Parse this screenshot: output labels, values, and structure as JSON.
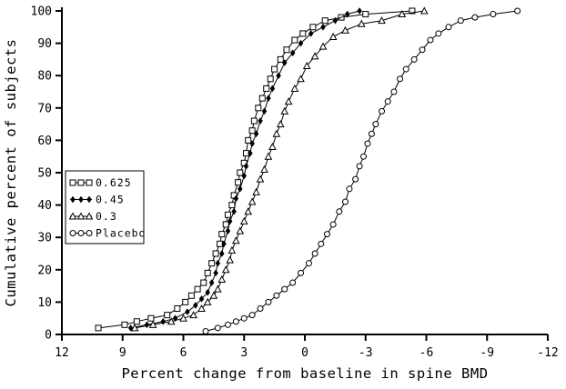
{
  "figure": {
    "background": "#ffffff",
    "ink": "#000000"
  },
  "chart_data": {
    "type": "line",
    "subtype": "cumulative-distribution",
    "title": "",
    "xlabel": "Percent change from baseline in spine BMD",
    "ylabel": "Cumulative percent of subjects",
    "grid": false,
    "x_axis": {
      "min": -12,
      "max": 12,
      "reversed": true,
      "ticks": [
        12,
        9,
        6,
        3,
        0,
        -3,
        -6,
        -9,
        -12
      ]
    },
    "y_axis": {
      "min": 0,
      "max": 100,
      "ticks": [
        0,
        10,
        20,
        30,
        40,
        50,
        60,
        70,
        80,
        90,
        100
      ]
    },
    "legend": {
      "position": "inside-left",
      "entries": [
        "0.625",
        "0.45",
        "0.3",
        "Placebo"
      ]
    },
    "series": [
      {
        "name": "0.625",
        "marker": "square",
        "points": [
          [
            10.2,
            2
          ],
          [
            8.9,
            3
          ],
          [
            8.3,
            4
          ],
          [
            7.6,
            5
          ],
          [
            6.8,
            6
          ],
          [
            6.3,
            8
          ],
          [
            5.9,
            10
          ],
          [
            5.6,
            12
          ],
          [
            5.3,
            14
          ],
          [
            5.0,
            16
          ],
          [
            4.8,
            19
          ],
          [
            4.6,
            22
          ],
          [
            4.4,
            25
          ],
          [
            4.2,
            28
          ],
          [
            4.1,
            31
          ],
          [
            3.9,
            34
          ],
          [
            3.8,
            37
          ],
          [
            3.6,
            40
          ],
          [
            3.5,
            43
          ],
          [
            3.3,
            47
          ],
          [
            3.2,
            50
          ],
          [
            3.0,
            53
          ],
          [
            2.9,
            56
          ],
          [
            2.8,
            60
          ],
          [
            2.6,
            63
          ],
          [
            2.5,
            66
          ],
          [
            2.3,
            70
          ],
          [
            2.1,
            73
          ],
          [
            1.9,
            76
          ],
          [
            1.7,
            79
          ],
          [
            1.5,
            82
          ],
          [
            1.2,
            85
          ],
          [
            0.9,
            88
          ],
          [
            0.5,
            91
          ],
          [
            0.1,
            93
          ],
          [
            -0.4,
            95
          ],
          [
            -1.0,
            97
          ],
          [
            -1.8,
            98
          ],
          [
            -3.0,
            99
          ],
          [
            -5.3,
            100
          ]
        ]
      },
      {
        "name": "0.45",
        "marker": "diamond",
        "points": [
          [
            8.6,
            2
          ],
          [
            7.8,
            3
          ],
          [
            7.0,
            4
          ],
          [
            6.4,
            5
          ],
          [
            5.8,
            7
          ],
          [
            5.4,
            9
          ],
          [
            5.1,
            11
          ],
          [
            4.8,
            13
          ],
          [
            4.6,
            16
          ],
          [
            4.4,
            19
          ],
          [
            4.3,
            22
          ],
          [
            4.1,
            25
          ],
          [
            4.0,
            28
          ],
          [
            3.8,
            32
          ],
          [
            3.7,
            35
          ],
          [
            3.5,
            38
          ],
          [
            3.4,
            42
          ],
          [
            3.2,
            45
          ],
          [
            3.0,
            49
          ],
          [
            2.9,
            52
          ],
          [
            2.7,
            56
          ],
          [
            2.6,
            59
          ],
          [
            2.4,
            62
          ],
          [
            2.2,
            66
          ],
          [
            2.0,
            69
          ],
          [
            1.8,
            73
          ],
          [
            1.6,
            76
          ],
          [
            1.3,
            80
          ],
          [
            1.0,
            84
          ],
          [
            0.6,
            87
          ],
          [
            0.2,
            90
          ],
          [
            -0.3,
            93
          ],
          [
            -0.9,
            95
          ],
          [
            -1.5,
            97
          ],
          [
            -2.1,
            99
          ],
          [
            -2.7,
            100
          ]
        ]
      },
      {
        "name": "0.3",
        "marker": "triangle",
        "points": [
          [
            8.4,
            2
          ],
          [
            7.5,
            3
          ],
          [
            6.6,
            4
          ],
          [
            6.0,
            5
          ],
          [
            5.5,
            6
          ],
          [
            5.1,
            8
          ],
          [
            4.8,
            10
          ],
          [
            4.5,
            12
          ],
          [
            4.3,
            14
          ],
          [
            4.1,
            17
          ],
          [
            3.9,
            20
          ],
          [
            3.7,
            23
          ],
          [
            3.6,
            26
          ],
          [
            3.4,
            29
          ],
          [
            3.2,
            32
          ],
          [
            3.0,
            35
          ],
          [
            2.8,
            38
          ],
          [
            2.6,
            41
          ],
          [
            2.4,
            44
          ],
          [
            2.2,
            48
          ],
          [
            2.0,
            51
          ],
          [
            1.8,
            55
          ],
          [
            1.6,
            58
          ],
          [
            1.4,
            62
          ],
          [
            1.2,
            65
          ],
          [
            1.0,
            69
          ],
          [
            0.8,
            72
          ],
          [
            0.5,
            76
          ],
          [
            0.2,
            79
          ],
          [
            -0.1,
            83
          ],
          [
            -0.5,
            86
          ],
          [
            -0.9,
            89
          ],
          [
            -1.4,
            92
          ],
          [
            -2.0,
            94
          ],
          [
            -2.8,
            96
          ],
          [
            -3.8,
            97
          ],
          [
            -4.8,
            99
          ],
          [
            -5.9,
            100
          ]
        ]
      },
      {
        "name": "Placebo",
        "marker": "circle",
        "points": [
          [
            4.9,
            1
          ],
          [
            4.3,
            2
          ],
          [
            3.8,
            3
          ],
          [
            3.4,
            4
          ],
          [
            3.0,
            5
          ],
          [
            2.6,
            6
          ],
          [
            2.2,
            8
          ],
          [
            1.8,
            10
          ],
          [
            1.4,
            12
          ],
          [
            1.0,
            14
          ],
          [
            0.6,
            16
          ],
          [
            0.2,
            19
          ],
          [
            -0.2,
            22
          ],
          [
            -0.5,
            25
          ],
          [
            -0.8,
            28
          ],
          [
            -1.1,
            31
          ],
          [
            -1.4,
            34
          ],
          [
            -1.7,
            38
          ],
          [
            -2.0,
            41
          ],
          [
            -2.2,
            45
          ],
          [
            -2.5,
            48
          ],
          [
            -2.7,
            52
          ],
          [
            -2.9,
            55
          ],
          [
            -3.1,
            59
          ],
          [
            -3.3,
            62
          ],
          [
            -3.5,
            65
          ],
          [
            -3.8,
            69
          ],
          [
            -4.1,
            72
          ],
          [
            -4.4,
            75
          ],
          [
            -4.7,
            79
          ],
          [
            -5.0,
            82
          ],
          [
            -5.4,
            85
          ],
          [
            -5.8,
            88
          ],
          [
            -6.2,
            91
          ],
          [
            -6.6,
            93
          ],
          [
            -7.1,
            95
          ],
          [
            -7.7,
            97
          ],
          [
            -8.4,
            98
          ],
          [
            -9.3,
            99
          ],
          [
            -10.5,
            100
          ]
        ]
      }
    ]
  }
}
